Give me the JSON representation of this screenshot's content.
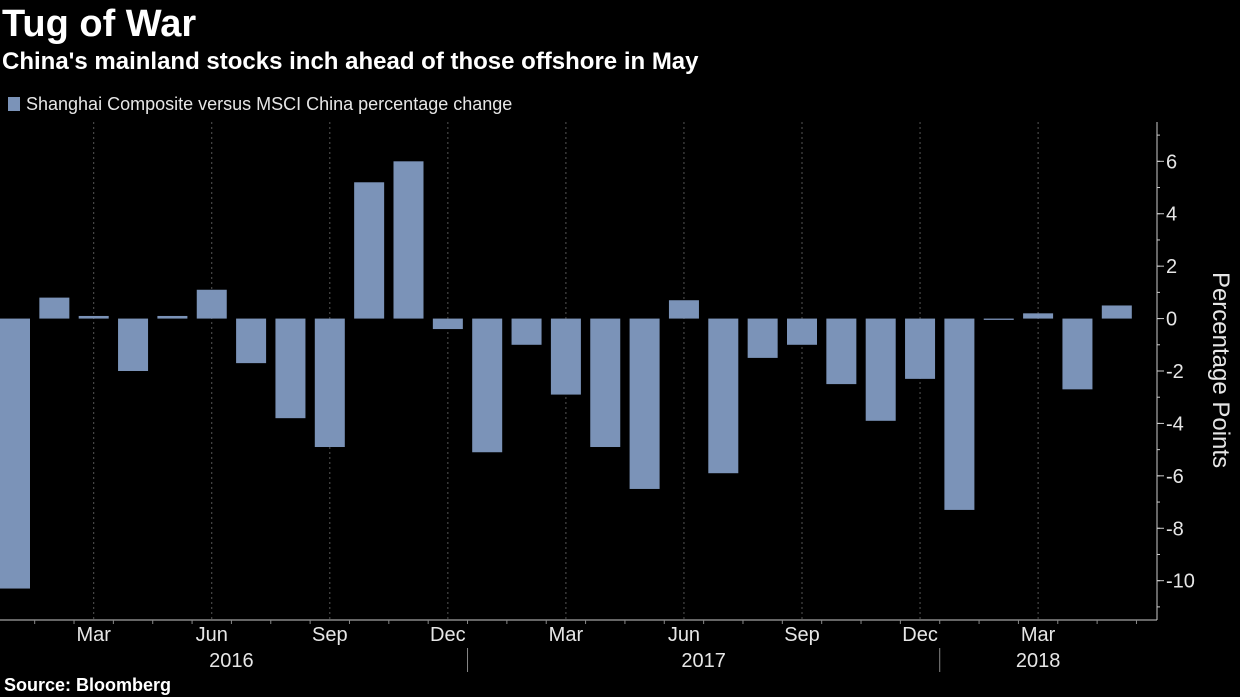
{
  "title": "Tug of War",
  "subtitle": "China's mainland stocks inch ahead of those offshore in May",
  "source": "Source: Bloomberg",
  "colors": {
    "background": "#000000",
    "bar": "#7b93b8",
    "grid": "#555555",
    "text": "#e6e6e6"
  },
  "chart_data": {
    "type": "bar",
    "ylabel": "Percentage Points",
    "ylim": [
      -11.5,
      7.5
    ],
    "yticks": [
      6,
      4,
      2,
      0,
      -2,
      -4,
      -6,
      -8,
      -10
    ],
    "ytick_labels": [
      "6",
      "4",
      "2",
      "0",
      "-2",
      "-4",
      "-6",
      "-8",
      "-10"
    ],
    "grid": "vertical",
    "y_axis_side": "right",
    "legend_position": "top-left",
    "months": [
      "Jan 2016",
      "Feb 2016",
      "Mar 2016",
      "Apr 2016",
      "May 2016",
      "Jun 2016",
      "Jul 2016",
      "Aug 2016",
      "Sep 2016",
      "Oct 2016",
      "Nov 2016",
      "Dec 2016",
      "Jan 2017",
      "Feb 2017",
      "Mar 2017",
      "Apr 2017",
      "May 2017",
      "Jun 2017",
      "Jul 2017",
      "Aug 2017",
      "Sep 2017",
      "Oct 2017",
      "Nov 2017",
      "Dec 2017",
      "Jan 2018",
      "Feb 2018",
      "Mar 2018",
      "Apr 2018",
      "May 2018"
    ],
    "series": [
      {
        "name": "Shanghai Composite versus MSCI China percentage change",
        "values": [
          -10.3,
          0.8,
          0.1,
          -2.0,
          0.1,
          1.1,
          -1.7,
          -3.8,
          -4.9,
          5.2,
          6.0,
          -0.4,
          -5.1,
          -1.0,
          -2.9,
          -4.9,
          -6.5,
          0.7,
          -5.9,
          -1.5,
          -1.0,
          -2.5,
          -3.9,
          -2.3,
          -7.3,
          -0.05,
          0.2,
          -2.7,
          0.5
        ]
      }
    ],
    "month_ticks": [
      {
        "index": 2,
        "label": "Mar"
      },
      {
        "index": 5,
        "label": "Jun"
      },
      {
        "index": 8,
        "label": "Sep"
      },
      {
        "index": 11,
        "label": "Dec"
      },
      {
        "index": 14,
        "label": "Mar"
      },
      {
        "index": 17,
        "label": "Jun"
      },
      {
        "index": 20,
        "label": "Sep"
      },
      {
        "index": 23,
        "label": "Dec"
      },
      {
        "index": 26,
        "label": "Mar"
      }
    ],
    "year_labels": [
      {
        "label": "2016",
        "from": 0,
        "to": 11
      },
      {
        "label": "2017",
        "from": 12,
        "to": 23
      },
      {
        "label": "2018",
        "from": 24,
        "to": 28
      }
    ],
    "year_separators": [
      11.5,
      23.5
    ]
  }
}
